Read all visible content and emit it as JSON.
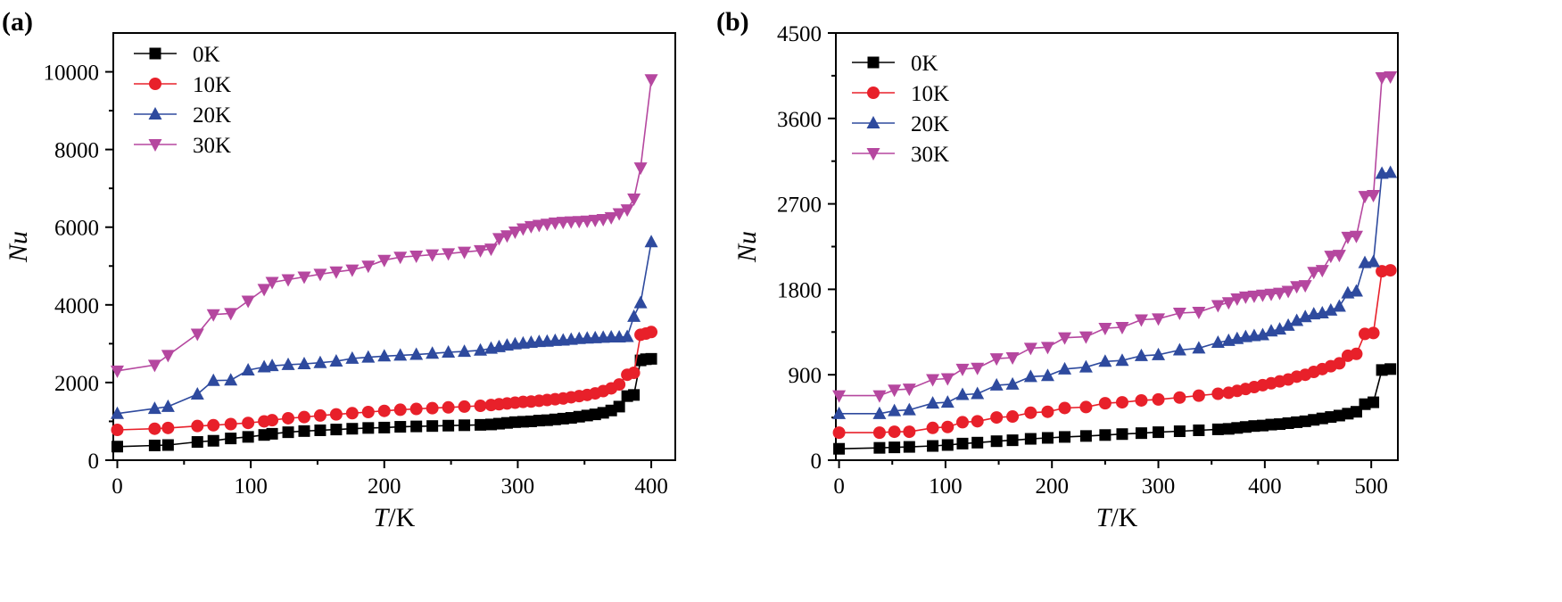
{
  "chart_data": [
    {
      "type": "line",
      "panel_label": "(a)",
      "xlabel_italic": "T",
      "xlabel_rest": "/K",
      "ylabel": "Nu",
      "xlim": [
        -3,
        418
      ],
      "ylim": [
        0,
        11000
      ],
      "xticks": [
        0,
        100,
        200,
        300,
        400
      ],
      "yticks": [
        0,
        2000,
        4000,
        6000,
        8000,
        10000
      ],
      "grid": false,
      "legend": "top-left",
      "series": [
        {
          "name": "0K",
          "color": "#000000",
          "marker": "square",
          "x": [
            0,
            28,
            38,
            60,
            72,
            85,
            98,
            110,
            116,
            128,
            140,
            152,
            164,
            176,
            188,
            200,
            212,
            224,
            236,
            248,
            260,
            272,
            280,
            286,
            292,
            298,
            304,
            310,
            316,
            322,
            328,
            334,
            340,
            346,
            352,
            358,
            364,
            370,
            376,
            382,
            387,
            392,
            396,
            400
          ],
          "y": [
            350,
            380,
            390,
            470,
            500,
            560,
            600,
            650,
            680,
            720,
            750,
            770,
            790,
            810,
            830,
            840,
            860,
            870,
            880,
            890,
            900,
            910,
            920,
            940,
            960,
            980,
            990,
            1000,
            1020,
            1030,
            1050,
            1070,
            1090,
            1120,
            1150,
            1180,
            1220,
            1280,
            1380,
            1650,
            1680,
            2570,
            2600,
            2610
          ]
        },
        {
          "name": "10K",
          "color": "#e8202a",
          "marker": "circle",
          "x": [
            0,
            28,
            38,
            60,
            72,
            85,
            98,
            110,
            116,
            128,
            140,
            152,
            164,
            176,
            188,
            200,
            212,
            224,
            236,
            248,
            260,
            272,
            280,
            286,
            292,
            298,
            304,
            310,
            316,
            322,
            328,
            334,
            340,
            346,
            352,
            358,
            364,
            370,
            376,
            382,
            387,
            392,
            396,
            400
          ],
          "y": [
            780,
            810,
            830,
            880,
            900,
            930,
            960,
            1000,
            1030,
            1080,
            1110,
            1150,
            1180,
            1210,
            1240,
            1270,
            1300,
            1320,
            1340,
            1360,
            1380,
            1400,
            1420,
            1440,
            1460,
            1480,
            1500,
            1510,
            1530,
            1550,
            1570,
            1590,
            1620,
            1650,
            1680,
            1720,
            1780,
            1850,
            1950,
            2200,
            2250,
            3230,
            3260,
            3300
          ]
        },
        {
          "name": "20K",
          "color": "#2e4a9e",
          "marker": "triangle-up",
          "x": [
            0,
            28,
            38,
            60,
            72,
            85,
            98,
            110,
            116,
            128,
            140,
            152,
            164,
            176,
            188,
            200,
            212,
            224,
            236,
            248,
            260,
            272,
            280,
            286,
            292,
            298,
            304,
            310,
            316,
            322,
            328,
            334,
            340,
            346,
            352,
            358,
            364,
            370,
            376,
            382,
            387,
            392,
            400
          ],
          "y": [
            1200,
            1330,
            1380,
            1700,
            2050,
            2060,
            2320,
            2400,
            2430,
            2460,
            2480,
            2510,
            2550,
            2620,
            2650,
            2680,
            2700,
            2720,
            2750,
            2780,
            2800,
            2830,
            2880,
            2920,
            2960,
            2990,
            3010,
            3030,
            3050,
            3060,
            3080,
            3090,
            3110,
            3130,
            3140,
            3150,
            3160,
            3170,
            3170,
            3180,
            3700,
            4050,
            5620
          ]
        },
        {
          "name": "30K",
          "color": "#b5479f",
          "marker": "triangle-down",
          "x": [
            0,
            28,
            38,
            60,
            72,
            85,
            98,
            110,
            116,
            128,
            140,
            152,
            164,
            176,
            188,
            200,
            212,
            224,
            236,
            248,
            260,
            272,
            280,
            286,
            292,
            298,
            304,
            310,
            316,
            322,
            328,
            334,
            340,
            346,
            352,
            358,
            364,
            370,
            376,
            382,
            387,
            392,
            400
          ],
          "y": [
            2300,
            2450,
            2700,
            3250,
            3750,
            3780,
            4100,
            4400,
            4580,
            4650,
            4720,
            4790,
            4850,
            4900,
            5000,
            5150,
            5230,
            5260,
            5290,
            5320,
            5360,
            5400,
            5440,
            5710,
            5780,
            5880,
            5960,
            6020,
            6050,
            6080,
            6110,
            6130,
            6140,
            6150,
            6160,
            6180,
            6200,
            6250,
            6350,
            6450,
            6730,
            7530,
            9800
          ]
        }
      ]
    },
    {
      "type": "line",
      "panel_label": "(b)",
      "xlabel_italic": "T",
      "xlabel_rest": "/K",
      "ylabel": "Nu",
      "xlim": [
        -3,
        525
      ],
      "ylim": [
        0,
        4500
      ],
      "xticks": [
        0,
        100,
        200,
        300,
        400,
        500
      ],
      "yticks": [
        0,
        900,
        1800,
        2700,
        3600,
        4500
      ],
      "grid": false,
      "legend": "top-left",
      "series": [
        {
          "name": "0K",
          "color": "#000000",
          "marker": "square",
          "x": [
            0,
            38,
            52,
            66,
            88,
            102,
            116,
            130,
            148,
            163,
            180,
            196,
            212,
            232,
            250,
            266,
            284,
            300,
            320,
            338,
            356,
            366,
            374,
            382,
            390,
            398,
            406,
            414,
            422,
            430,
            438,
            446,
            454,
            462,
            470,
            478,
            486,
            494,
            502,
            510,
            518
          ],
          "y": [
            120,
            130,
            135,
            140,
            150,
            160,
            175,
            185,
            200,
            210,
            225,
            235,
            245,
            255,
            265,
            275,
            285,
            295,
            305,
            315,
            325,
            330,
            340,
            350,
            360,
            365,
            375,
            380,
            390,
            400,
            410,
            425,
            440,
            455,
            470,
            490,
            510,
            590,
            610,
            950,
            960
          ]
        },
        {
          "name": "10K",
          "color": "#e8202a",
          "marker": "circle",
          "x": [
            0,
            38,
            52,
            66,
            88,
            102,
            116,
            130,
            148,
            163,
            180,
            196,
            212,
            232,
            250,
            266,
            284,
            300,
            320,
            338,
            356,
            366,
            374,
            382,
            390,
            398,
            406,
            414,
            422,
            430,
            438,
            446,
            454,
            462,
            470,
            478,
            486,
            494,
            502,
            510,
            518
          ],
          "y": [
            290,
            290,
            300,
            300,
            340,
            350,
            400,
            410,
            450,
            460,
            500,
            510,
            550,
            560,
            600,
            610,
            630,
            640,
            660,
            680,
            700,
            710,
            730,
            750,
            770,
            790,
            810,
            830,
            850,
            880,
            900,
            930,
            960,
            990,
            1020,
            1100,
            1120,
            1330,
            1340,
            1990,
            2000
          ]
        },
        {
          "name": "20K",
          "color": "#2e4a9e",
          "marker": "triangle-up",
          "x": [
            0,
            38,
            52,
            66,
            88,
            102,
            116,
            130,
            148,
            163,
            180,
            196,
            212,
            232,
            250,
            266,
            284,
            300,
            320,
            338,
            356,
            366,
            374,
            382,
            390,
            398,
            406,
            414,
            422,
            430,
            438,
            446,
            454,
            462,
            470,
            478,
            486,
            494,
            502,
            510,
            518
          ],
          "y": [
            490,
            490,
            520,
            530,
            600,
            610,
            690,
            700,
            790,
            800,
            880,
            890,
            960,
            980,
            1040,
            1050,
            1100,
            1110,
            1160,
            1180,
            1240,
            1260,
            1280,
            1300,
            1310,
            1320,
            1360,
            1380,
            1420,
            1470,
            1510,
            1540,
            1550,
            1580,
            1620,
            1760,
            1780,
            2080,
            2090,
            3020,
            3030
          ]
        },
        {
          "name": "30K",
          "color": "#b5479f",
          "marker": "triangle-down",
          "x": [
            0,
            38,
            52,
            66,
            88,
            102,
            116,
            130,
            148,
            163,
            180,
            196,
            212,
            232,
            250,
            266,
            284,
            300,
            320,
            338,
            356,
            366,
            374,
            382,
            390,
            398,
            406,
            414,
            422,
            430,
            438,
            446,
            454,
            462,
            470,
            478,
            486,
            494,
            502,
            510,
            518
          ],
          "y": [
            680,
            680,
            740,
            750,
            850,
            860,
            960,
            970,
            1070,
            1080,
            1180,
            1190,
            1290,
            1300,
            1390,
            1400,
            1480,
            1490,
            1550,
            1560,
            1630,
            1660,
            1700,
            1720,
            1730,
            1740,
            1750,
            1760,
            1780,
            1830,
            1840,
            1980,
            2000,
            2150,
            2160,
            2350,
            2360,
            2780,
            2790,
            4030,
            4040
          ]
        }
      ]
    }
  ]
}
